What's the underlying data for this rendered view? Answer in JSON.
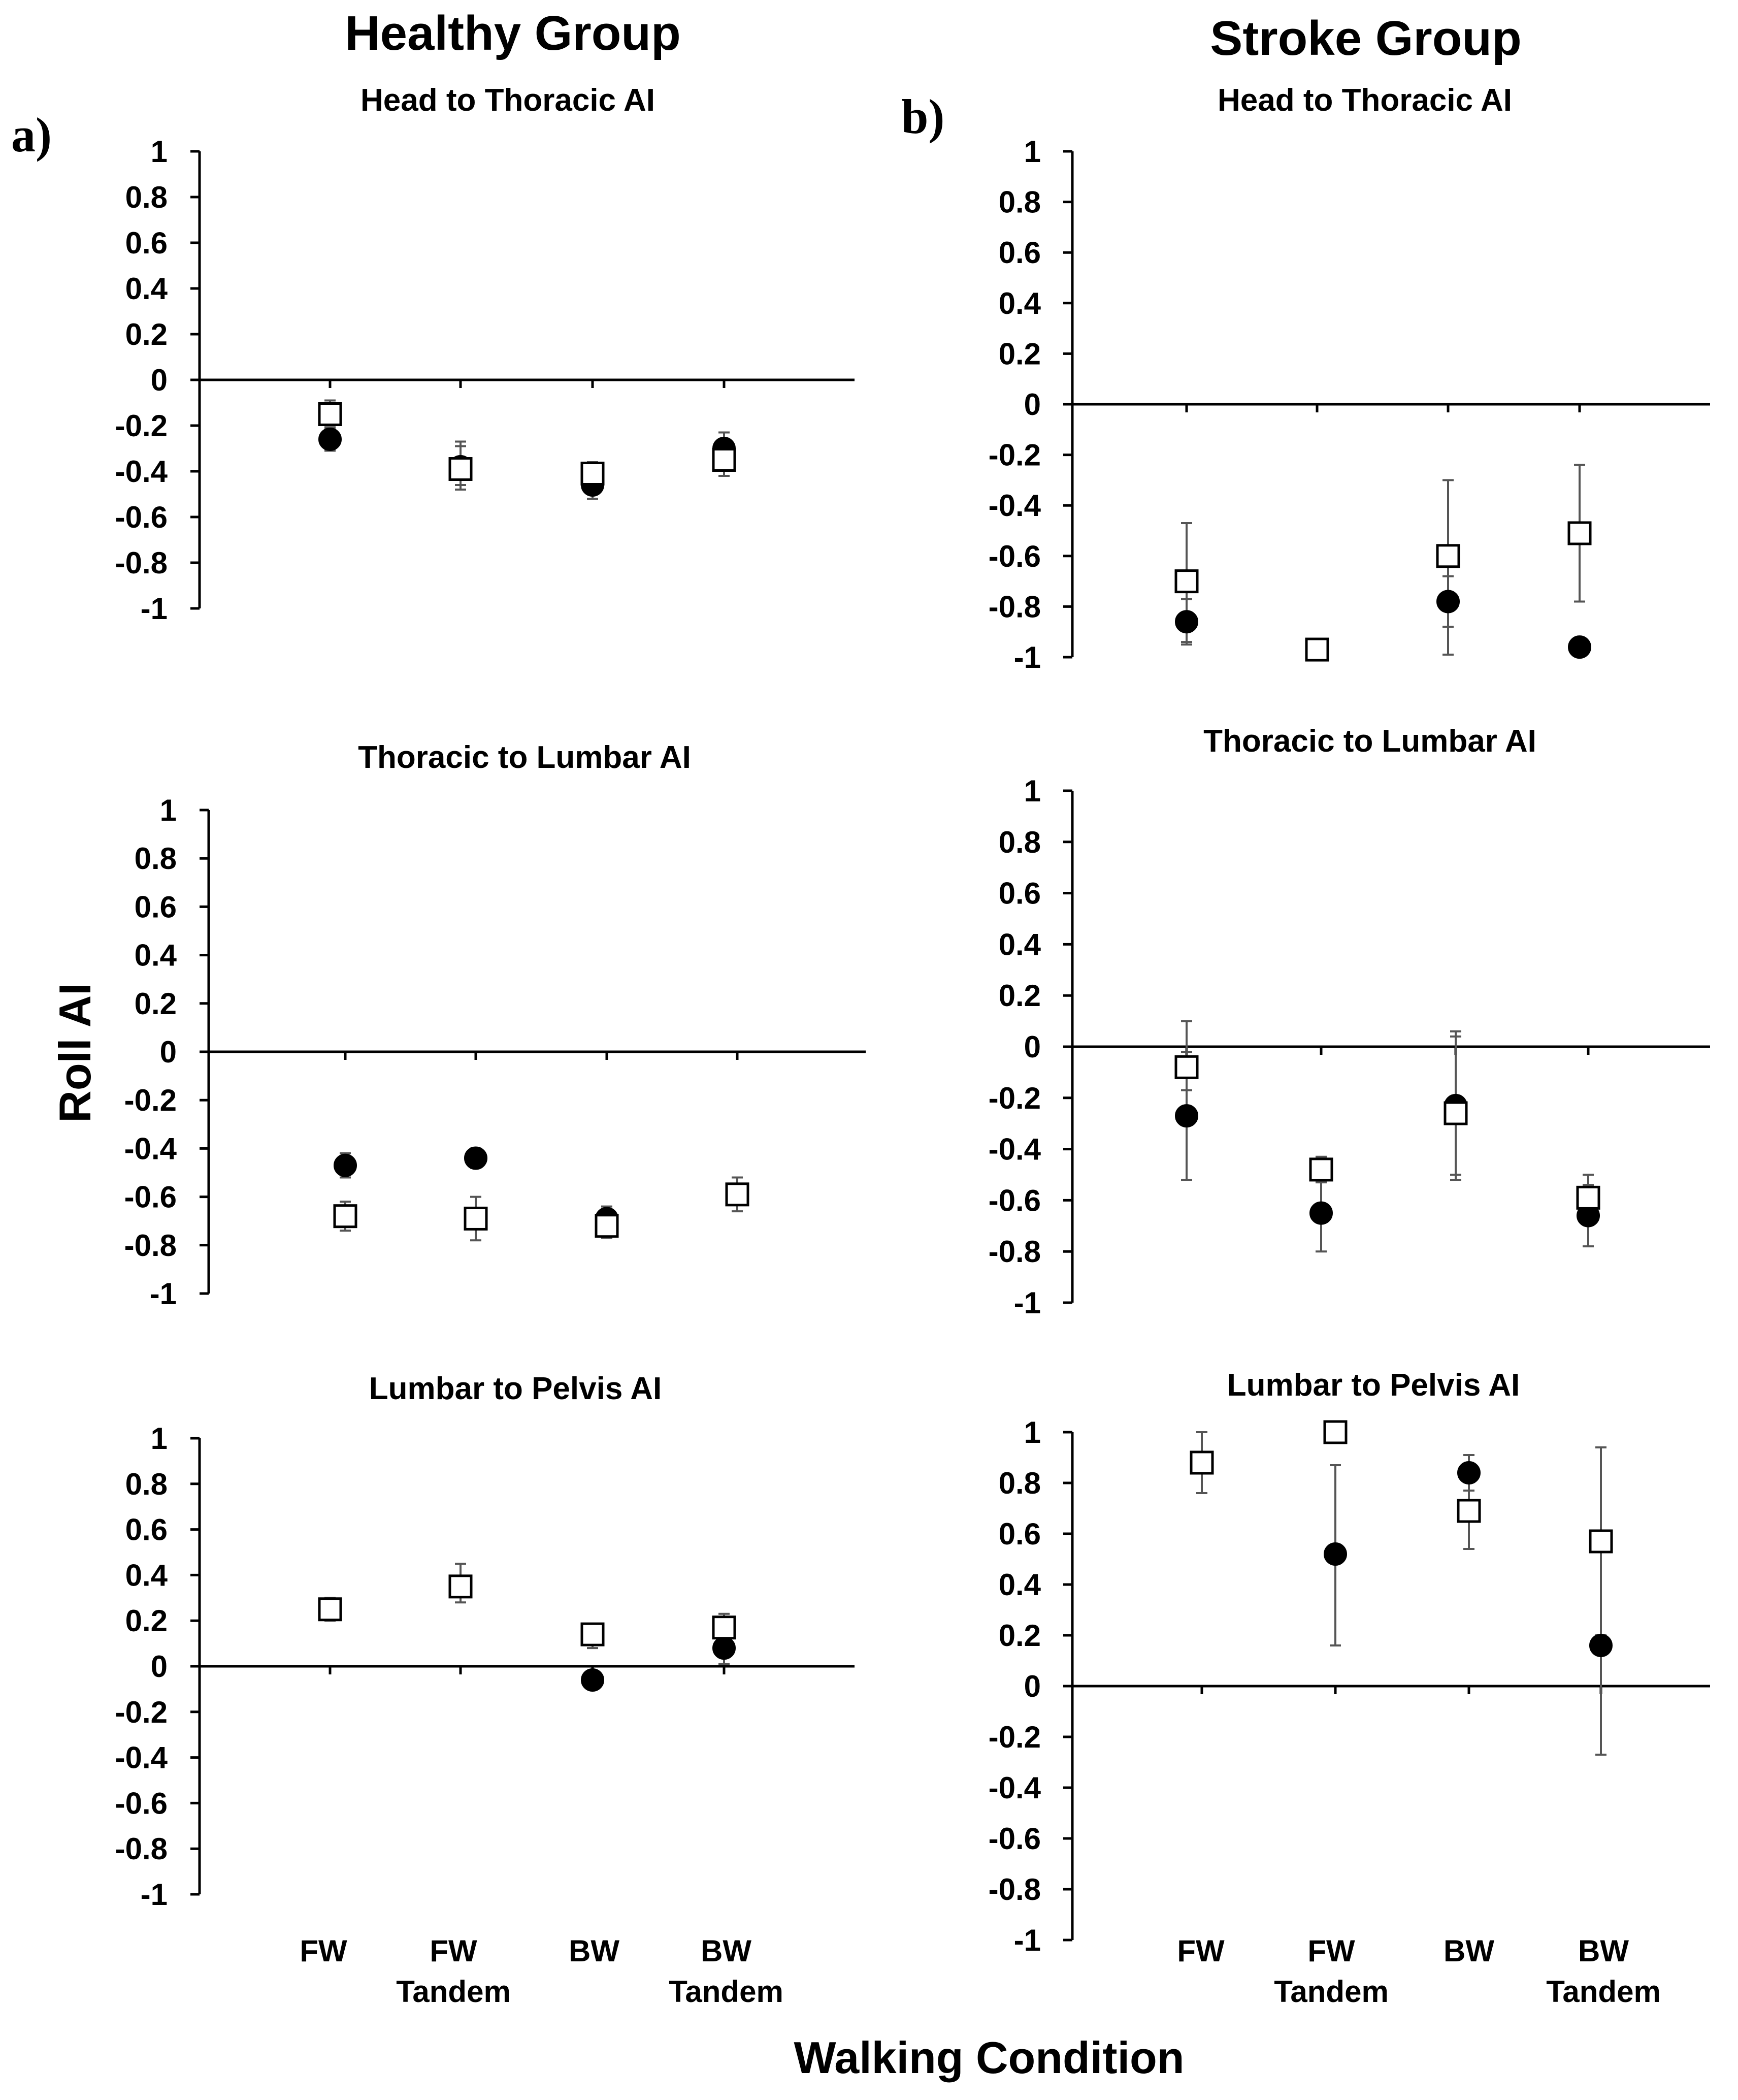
{
  "group_titles": {
    "healthy": "Healthy Group",
    "stroke": "Stroke Group"
  },
  "panel_labels": {
    "a": "a)",
    "b": "b)"
  },
  "y_axis_title": "Roll AI",
  "x_axis_title": "Walking Condition",
  "x_ticks_line1": [
    "FW",
    "FW",
    "BW",
    "BW"
  ],
  "x_ticks_line2": [
    "",
    "Tandem",
    "",
    "Tandem"
  ],
  "colors": {
    "axis": "#000000",
    "error_bar": "#555555",
    "marker_fill": "#000000",
    "open_marker_fill": "#ffffff"
  },
  "chart_data": [
    {
      "type": "scatter",
      "group": "healthy",
      "title": "Head to Thoracic AI",
      "categories": [
        "FW",
        "FW Tandem",
        "BW",
        "BW Tandem"
      ],
      "ylim": [
        -1,
        1
      ],
      "yticks": [
        "1",
        "0.8",
        "0.6",
        "0.4",
        "0.2",
        "0",
        "-0.2",
        "-0.4",
        "-0.6",
        "-0.8",
        "-1"
      ],
      "series": [
        {
          "name": "filled-circle",
          "marker": "circle",
          "values": [
            -0.26,
            -0.38,
            -0.46,
            -0.3
          ],
          "err_low": [
            -0.31,
            -0.46,
            -0.52,
            -0.36
          ],
          "err_high": [
            -0.21,
            -0.29,
            -0.4,
            -0.23
          ]
        },
        {
          "name": "open-square",
          "marker": "square",
          "values": [
            -0.15,
            -0.39,
            -0.41,
            -0.35
          ],
          "err_low": [
            -0.2,
            -0.48,
            -0.46,
            -0.42
          ],
          "err_high": [
            -0.09,
            -0.27,
            -0.36,
            -0.28
          ]
        }
      ]
    },
    {
      "type": "scatter",
      "group": "healthy",
      "title": "Thoracic to Lumbar AI",
      "categories": [
        "FW",
        "FW Tandem",
        "BW",
        "BW Tandem"
      ],
      "ylim": [
        -1,
        1
      ],
      "yticks": [
        "1",
        "0.8",
        "0.6",
        "0.4",
        "0.2",
        "0",
        "-0.2",
        "-0.4",
        "-0.6",
        "-0.8",
        "-1"
      ],
      "series": [
        {
          "name": "filled-circle",
          "marker": "circle",
          "values": [
            -0.47,
            -0.44,
            -0.69,
            null
          ],
          "err_low": [
            -0.52,
            -0.48,
            -0.74,
            null
          ],
          "err_high": [
            -0.42,
            -0.4,
            -0.64,
            null
          ]
        },
        {
          "name": "open-square",
          "marker": "square",
          "values": [
            -0.68,
            -0.69,
            -0.72,
            -0.59
          ],
          "err_low": [
            -0.74,
            -0.78,
            -0.77,
            -0.66
          ],
          "err_high": [
            -0.62,
            -0.6,
            -0.67,
            -0.52
          ]
        }
      ]
    },
    {
      "type": "scatter",
      "group": "healthy",
      "title": "Lumbar to Pelvis AI",
      "categories": [
        "FW",
        "FW Tandem",
        "BW",
        "BW Tandem"
      ],
      "ylim": [
        -1,
        1
      ],
      "yticks": [
        "1",
        "0.8",
        "0.6",
        "0.4",
        "0.2",
        "0",
        "-0.2",
        "-0.4",
        "-0.6",
        "-0.8",
        "-1"
      ],
      "series": [
        {
          "name": "filled-circle",
          "marker": "circle",
          "values": [
            null,
            null,
            -0.06,
            0.08
          ],
          "err_low": [
            null,
            null,
            -0.1,
            0.01
          ],
          "err_high": [
            null,
            null,
            -0.02,
            0.14
          ]
        },
        {
          "name": "open-square",
          "marker": "square",
          "values": [
            0.25,
            0.35,
            0.14,
            0.17
          ],
          "err_low": [
            0.2,
            0.28,
            0.08,
            0.11
          ],
          "err_high": [
            0.3,
            0.45,
            0.18,
            0.23
          ]
        }
      ]
    },
    {
      "type": "scatter",
      "group": "stroke",
      "title": "Head to Thoracic AI",
      "categories": [
        "FW",
        "FW Tandem",
        "BW",
        "BW Tandem"
      ],
      "ylim": [
        -1,
        1
      ],
      "yticks": [
        "1",
        "0.8",
        "0.6",
        "0.4",
        "0.2",
        "0",
        "-0.2",
        "-0.4",
        "-0.6",
        "-0.8",
        "-1"
      ],
      "series": [
        {
          "name": "filled-circle",
          "marker": "circle",
          "values": [
            -0.86,
            null,
            -0.78,
            -0.96
          ],
          "err_low": [
            -0.95,
            null,
            -0.88,
            null
          ],
          "err_high": [
            -0.77,
            null,
            -0.68,
            null
          ]
        },
        {
          "name": "open-square",
          "marker": "square",
          "values": [
            -0.7,
            -0.97,
            -0.6,
            -0.51
          ],
          "err_low": [
            -0.94,
            null,
            -0.99,
            -0.78
          ],
          "err_high": [
            -0.47,
            null,
            -0.3,
            -0.24
          ]
        }
      ]
    },
    {
      "type": "scatter",
      "group": "stroke",
      "title": "Thoracic to Lumbar AI",
      "categories": [
        "FW",
        "FW Tandem",
        "BW",
        "BW Tandem"
      ],
      "ylim": [
        -1,
        1
      ],
      "yticks": [
        "1",
        "0.8",
        "0.6",
        "0.4",
        "0.2",
        "0",
        "-0.2",
        "-0.4",
        "-0.6",
        "-0.8",
        "-1"
      ],
      "series": [
        {
          "name": "filled-circle",
          "marker": "circle",
          "values": [
            -0.27,
            -0.65,
            -0.23,
            -0.66
          ],
          "err_low": [
            -0.52,
            -0.8,
            -0.5,
            -0.78
          ],
          "err_high": [
            -0.02,
            -0.5,
            0.04,
            -0.54
          ]
        },
        {
          "name": "open-square",
          "marker": "square",
          "values": [
            -0.08,
            -0.48,
            -0.26,
            -0.59
          ],
          "err_low": [
            -0.17,
            -0.53,
            -0.52,
            -0.63
          ],
          "err_high": [
            0.1,
            -0.43,
            0.06,
            -0.5
          ]
        }
      ]
    },
    {
      "type": "scatter",
      "group": "stroke",
      "title": "Lumbar to Pelvis AI",
      "categories": [
        "FW",
        "FW Tandem",
        "BW",
        "BW Tandem"
      ],
      "ylim": [
        -1,
        1
      ],
      "yticks": [
        "1",
        "0.8",
        "0.6",
        "0.4",
        "0.2",
        "0",
        "-0.2",
        "-0.4",
        "-0.6",
        "-0.8",
        "-1"
      ],
      "series": [
        {
          "name": "filled-circle",
          "marker": "circle",
          "values": [
            null,
            0.52,
            0.84,
            0.16
          ],
          "err_low": [
            null,
            0.16,
            0.77,
            -0.27
          ],
          "err_high": [
            null,
            0.87,
            0.91,
            0.94
          ]
        },
        {
          "name": "open-square",
          "marker": "square",
          "values": [
            0.88,
            1.0,
            0.69,
            0.57
          ],
          "err_low": [
            0.76,
            null,
            0.54,
            0.2
          ],
          "err_high": [
            1.0,
            null,
            0.83,
            0.94
          ]
        }
      ]
    }
  ]
}
